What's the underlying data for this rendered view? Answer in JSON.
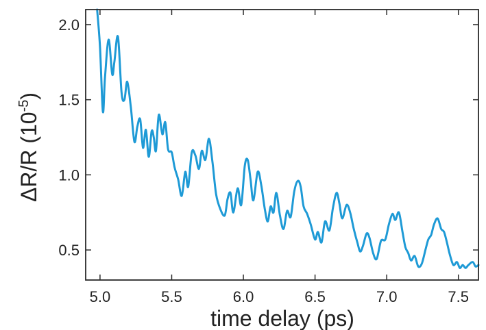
{
  "chart_data": {
    "type": "line",
    "xlabel": "time delay (ps)",
    "ylabel": {
      "prefix": "ΔR/R (10",
      "exponent": "-5",
      "suffix": ")"
    },
    "xlim": [
      4.9,
      7.64
    ],
    "ylim": [
      0.3,
      2.1
    ],
    "x_ticks": [
      5.0,
      5.5,
      6.0,
      6.5,
      7.0,
      7.5
    ],
    "x_tick_labels": [
      "5.0",
      "5.5",
      "6.0",
      "6.5",
      "7.0",
      "7.5"
    ],
    "y_ticks": [
      0.5,
      1.0,
      1.5,
      2.0
    ],
    "y_tick_labels": [
      "0.5",
      "1.0",
      "1.5",
      "2.0"
    ],
    "grid": false,
    "line_color": "#1e9ad6",
    "series": [
      {
        "x": [
          4.98,
          5.0,
          5.02,
          5.035,
          5.06,
          5.085,
          5.1,
          5.125,
          5.15,
          5.17,
          5.19,
          5.215,
          5.24,
          5.26,
          5.28,
          5.3,
          5.32,
          5.34,
          5.36,
          5.375,
          5.39,
          5.41,
          5.435,
          5.455,
          5.475,
          5.5,
          5.52,
          5.545,
          5.57,
          5.595,
          5.615,
          5.64,
          5.665,
          5.69,
          5.71,
          5.735,
          5.76,
          5.785,
          5.81,
          5.84,
          5.87,
          5.89,
          5.91,
          5.93,
          5.96,
          5.985,
          6.01,
          6.03,
          6.05,
          6.07,
          6.1,
          6.125,
          6.15,
          6.17,
          6.19,
          6.21,
          6.23,
          6.255,
          6.28,
          6.305,
          6.33,
          6.355,
          6.38,
          6.4,
          6.42,
          6.445,
          6.47,
          6.5,
          6.52,
          6.545,
          6.57,
          6.6,
          6.625,
          6.65,
          6.67,
          6.69,
          6.72,
          6.745,
          6.77,
          6.795,
          6.815,
          6.835,
          6.86,
          6.88,
          6.905,
          6.93,
          6.96,
          6.99,
          7.015,
          7.04,
          7.06,
          7.085,
          7.11,
          7.13,
          7.15,
          7.17,
          7.195,
          7.22,
          7.245,
          7.27,
          7.29,
          7.31,
          7.33,
          7.355,
          7.38,
          7.4,
          7.42,
          7.44,
          7.465,
          7.49,
          7.51,
          7.53,
          7.55,
          7.57,
          7.6,
          7.62,
          7.64
        ],
        "y": [
          2.1,
          1.85,
          1.42,
          1.65,
          1.9,
          1.67,
          1.75,
          1.92,
          1.55,
          1.5,
          1.62,
          1.45,
          1.22,
          1.32,
          1.37,
          1.18,
          1.3,
          1.12,
          1.29,
          1.25,
          1.16,
          1.4,
          1.27,
          1.35,
          1.17,
          1.15,
          1.05,
          0.97,
          0.86,
          1.02,
          0.92,
          1.15,
          1.13,
          1.04,
          1.16,
          1.1,
          1.24,
          1.08,
          0.87,
          0.77,
          0.73,
          0.84,
          0.88,
          0.75,
          0.91,
          0.8,
          1.06,
          1.1,
          0.97,
          0.83,
          1.02,
          0.93,
          0.77,
          0.69,
          0.79,
          0.75,
          0.88,
          0.73,
          0.64,
          0.76,
          0.72,
          0.89,
          0.96,
          0.92,
          0.79,
          0.74,
          0.67,
          0.57,
          0.62,
          0.55,
          0.69,
          0.63,
          0.78,
          0.88,
          0.81,
          0.71,
          0.8,
          0.75,
          0.64,
          0.55,
          0.49,
          0.53,
          0.61,
          0.58,
          0.48,
          0.44,
          0.56,
          0.57,
          0.67,
          0.74,
          0.7,
          0.75,
          0.62,
          0.52,
          0.48,
          0.43,
          0.46,
          0.39,
          0.41,
          0.5,
          0.57,
          0.6,
          0.67,
          0.71,
          0.64,
          0.62,
          0.55,
          0.47,
          0.4,
          0.42,
          0.38,
          0.4,
          0.38,
          0.4,
          0.42,
          0.39,
          0.4
        ]
      }
    ]
  }
}
